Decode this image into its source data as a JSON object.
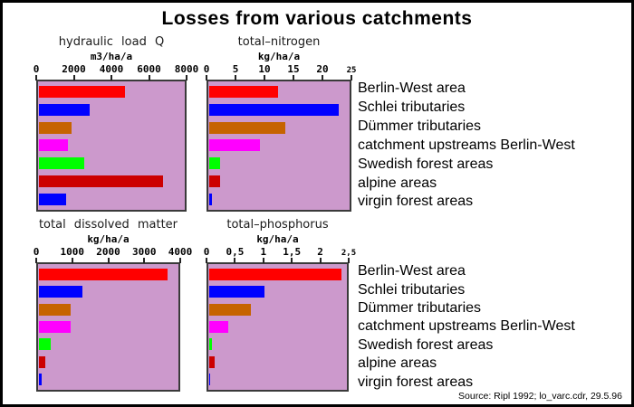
{
  "title": "Losses from various catchments",
  "source": "Source: Ripl 1992; lo_varc.cdr, 29.5.96",
  "categories": [
    "Berlin-West area",
    "Schlei tributaries",
    "Dümmer tributaries",
    "catchment upstreams Berlin-West",
    "Swedish forest areas",
    "alpine areas",
    "virgin forest areas"
  ],
  "colors": {
    "plot_background": "#cc99cc",
    "plot_border": "#3a3a3a",
    "bar_colors": [
      "#ff0000",
      "#0000ff",
      "#c66300",
      "#ff00ff",
      "#00ff00",
      "#cc0000",
      "#0000ff"
    ]
  },
  "chart_data": [
    {
      "type": "bar",
      "orientation": "horizontal",
      "title": "hydraulic load Q",
      "unit": "m3/ha/a",
      "xlim": [
        0,
        8000
      ],
      "tick_labels": [
        "0",
        "2000",
        "4000",
        "6000",
        "8000"
      ],
      "last_tick_small": false,
      "values": [
        4700,
        2800,
        1800,
        1600,
        2500,
        6800,
        1500
      ]
    },
    {
      "type": "bar",
      "orientation": "horizontal",
      "title": "total–nitrogen",
      "unit": "kg/ha/a",
      "xlim": [
        0,
        25
      ],
      "tick_labels": [
        "0",
        "5",
        "10",
        "15",
        "20",
        "25"
      ],
      "last_tick_small": true,
      "values": [
        12.3,
        23,
        13.5,
        9,
        2,
        2,
        0.5
      ]
    },
    {
      "type": "bar",
      "orientation": "horizontal",
      "title": "total dissolved matter",
      "unit": "kg/ha/a",
      "xlim": [
        0,
        4000
      ],
      "tick_labels": [
        "0",
        "1000",
        "2000",
        "3000",
        "4000"
      ],
      "last_tick_small": false,
      "values": [
        3700,
        1250,
        900,
        900,
        340,
        190,
        90
      ]
    },
    {
      "type": "bar",
      "orientation": "horizontal",
      "title": "total–phosphorus",
      "unit": "kg/ha/a",
      "xlim": [
        0,
        2.5
      ],
      "tick_labels": [
        "0",
        "0,5",
        "1",
        "1,5",
        "2",
        "2,5"
      ],
      "last_tick_small": true,
      "values": [
        2.4,
        1.0,
        0.75,
        0.35,
        0.05,
        0.1,
        0.01
      ]
    }
  ]
}
